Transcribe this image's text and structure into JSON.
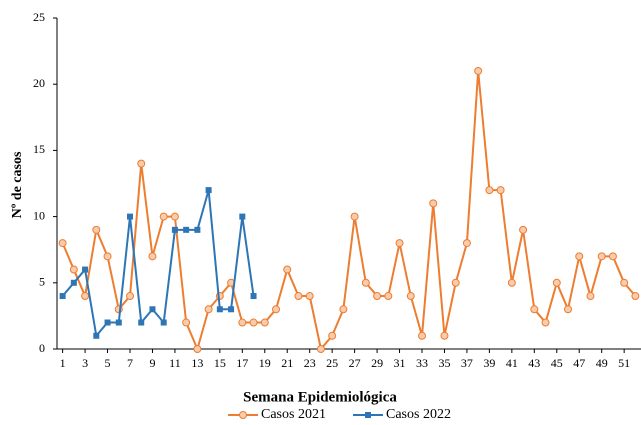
{
  "chart_data": {
    "type": "line",
    "xlabel": "Semana Epidemiológica",
    "ylabel": "Nº de casos",
    "x": [
      1,
      2,
      3,
      4,
      5,
      6,
      7,
      8,
      9,
      10,
      11,
      12,
      13,
      14,
      15,
      16,
      17,
      18,
      19,
      20,
      21,
      22,
      23,
      24,
      25,
      26,
      27,
      28,
      29,
      30,
      31,
      32,
      33,
      34,
      35,
      36,
      37,
      38,
      39,
      40,
      41,
      42,
      43,
      44,
      45,
      46,
      47,
      48,
      49,
      50,
      51,
      52
    ],
    "series": [
      {
        "name": "Casos 2021",
        "color": "#ed7d31",
        "marker_fill": "#f8cbad",
        "values": [
          8,
          6,
          4,
          9,
          7,
          3,
          4,
          14,
          7,
          10,
          10,
          2,
          0,
          3,
          4,
          5,
          2,
          2,
          2,
          3,
          6,
          4,
          4,
          0,
          1,
          3,
          10,
          5,
          4,
          4,
          8,
          4,
          1,
          11,
          1,
          5,
          8,
          21,
          12,
          12,
          5,
          9,
          3,
          2,
          5,
          3,
          7,
          4,
          7,
          7,
          5,
          4
        ]
      },
      {
        "name": "Casos 2022",
        "color": "#2e75b6",
        "marker_fill": "#2e75b6",
        "values": [
          4,
          5,
          6,
          1,
          2,
          2,
          10,
          2,
          3,
          2,
          9,
          9,
          9,
          12,
          3,
          3,
          10,
          4,
          null,
          null,
          null,
          null,
          null,
          null,
          null,
          null,
          null,
          null,
          null,
          null,
          null,
          null,
          null,
          null,
          null,
          null,
          null,
          null,
          null,
          null,
          null,
          null,
          null,
          null,
          null,
          null,
          null,
          null,
          null,
          null,
          null,
          null
        ]
      }
    ],
    "xlim": [
      0.5,
      52.5
    ],
    "xticks": [
      1,
      3,
      5,
      7,
      9,
      11,
      13,
      15,
      17,
      19,
      21,
      23,
      25,
      27,
      29,
      31,
      33,
      35,
      37,
      39,
      41,
      43,
      45,
      47,
      49,
      51
    ],
    "ylim": [
      0,
      25
    ],
    "yticks": [
      0,
      5,
      10,
      15,
      20,
      25
    ],
    "grid": false,
    "legend": "bottom"
  }
}
